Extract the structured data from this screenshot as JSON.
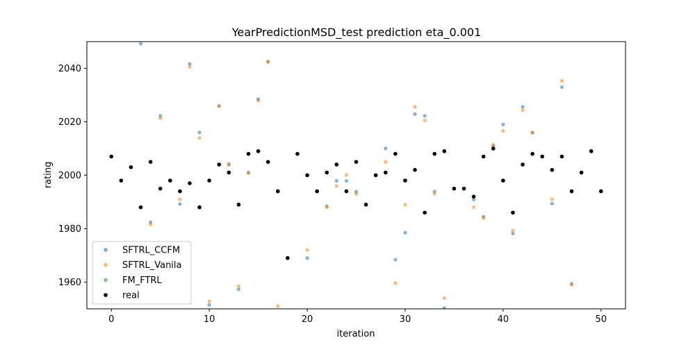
{
  "chart_data": {
    "type": "scatter",
    "title": "YearPredictionMSD_test prediction eta_0.001",
    "xlabel": "iteration",
    "ylabel": "rating",
    "xlim": [
      -2.5,
      52.5
    ],
    "ylim": [
      1950,
      2050
    ],
    "xticks": [
      0,
      10,
      20,
      30,
      40,
      50
    ],
    "yticks": [
      1960,
      1980,
      2000,
      2020,
      2040
    ],
    "legend_position": "lower-left",
    "series": [
      {
        "name": "SFTRL_CCFM",
        "color": "#1f77b4",
        "x": [
          3,
          4,
          5,
          7,
          8,
          9,
          10,
          11,
          12,
          13,
          14,
          15,
          16,
          20,
          22,
          23,
          24,
          25,
          28,
          29,
          30,
          31,
          32,
          33,
          34,
          37,
          38,
          39,
          40,
          41,
          42,
          43,
          45,
          46,
          47
        ],
        "y": [
          2049.2,
          1982.4,
          2022.2,
          1989.2,
          2041.7,
          2016.0,
          1951.5,
          2025.9,
          2004.2,
          1957.3,
          2001.0,
          2028.5,
          2042.4,
          1969.0,
          1988.4,
          1997.9,
          1997.9,
          1993.8,
          2010.0,
          1968.4,
          1978.5,
          2022.9,
          2022.2,
          1993.9,
          1950.3,
          1990.9,
          1984.5,
          2011.0,
          2019.0,
          1978.2,
          2025.6,
          2015.9,
          1989.4,
          2033.0,
          1959.4
        ]
      },
      {
        "name": "SFTRL_Vanila",
        "color": "#ff7f0e",
        "x": [
          4,
          5,
          7,
          8,
          9,
          10,
          11,
          12,
          13,
          14,
          15,
          16,
          17,
          20,
          22,
          23,
          24,
          25,
          28,
          29,
          30,
          31,
          32,
          33,
          34,
          37,
          38,
          39,
          40,
          41,
          42,
          43,
          45,
          46,
          47
        ],
        "y": [
          1981.6,
          2021.4,
          1991.0,
          2040.6,
          2014.0,
          1952.8,
          2025.9,
          2003.9,
          1958.5,
          2000.8,
          2027.9,
          2042.6,
          1951.0,
          1972.0,
          1988.0,
          1996.0,
          2000.1,
          1993.0,
          2005.0,
          1959.6,
          1989.0,
          2025.6,
          2020.5,
          1993.1,
          1954.0,
          1988.0,
          1984.0,
          2011.4,
          2016.6,
          1979.3,
          2024.4,
          2016.0,
          1991.0,
          2035.3,
          1959.0
        ]
      },
      {
        "name": "FM_FTRL",
        "color": "#2ca02c",
        "x": [],
        "y": []
      },
      {
        "name": "real",
        "color": "#000000",
        "x": [
          0,
          1,
          2,
          3,
          4,
          5,
          6,
          7,
          8,
          9,
          10,
          11,
          12,
          13,
          14,
          15,
          16,
          17,
          18,
          19,
          20,
          21,
          22,
          23,
          24,
          25,
          26,
          27,
          28,
          29,
          30,
          31,
          32,
          33,
          34,
          35,
          36,
          37,
          38,
          39,
          40,
          41,
          42,
          43,
          44,
          45,
          46,
          47,
          48,
          49,
          50
        ],
        "y": [
          2007,
          1998,
          2003,
          1988,
          2005,
          1995,
          1998,
          1994,
          1997,
          1988,
          1998,
          2004,
          2001,
          1989,
          2008,
          2009,
          2005,
          1994,
          1969,
          2008,
          2000,
          1994,
          2001,
          2004,
          1994,
          2005,
          1989,
          2000,
          2001,
          2008,
          1998,
          2002,
          1986,
          2008,
          2009,
          1995,
          1995,
          1992,
          2007,
          2010,
          1998,
          1986,
          2004,
          2008,
          2007,
          2002,
          2007,
          1994,
          2001,
          2009,
          1994
        ]
      }
    ]
  }
}
